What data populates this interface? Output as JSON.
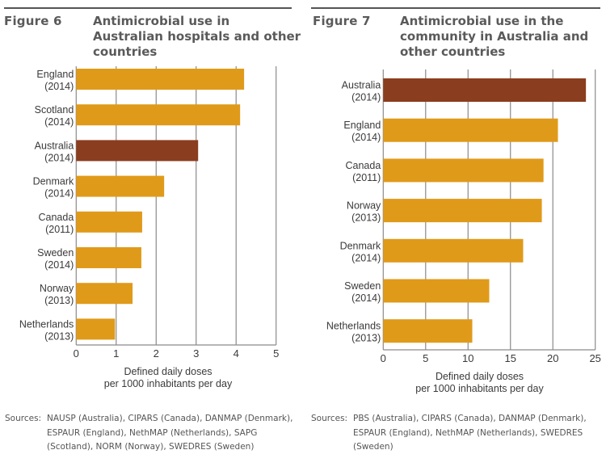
{
  "colors": {
    "highlight": "#8b3d1f",
    "bar": "#e09a1a",
    "grid": "#8a8a8a",
    "rule": "#555555",
    "text": "#5a5a5a"
  },
  "figure6": {
    "number": "Figure 6",
    "title": "Antimicrobial use in Australian hospitals and other countries",
    "sources_label": "Sources:",
    "sources_text": "NAUSP (Australia), CIPARS (Canada), DANMAP (Denmark), ESPAUR (England), NethMAP (Netherlands), SAPG (Scotland), NORM (Norway), SWEDRES (Sweden)"
  },
  "figure7": {
    "number": "Figure 7",
    "title": "Antimicrobial use in the community in Australia and other countries",
    "sources_label": "Sources:",
    "sources_text": "PBS (Australia), CIPARS (Canada), DANMAP (Denmark), ESPAUR (England), NethMAP (Netherlands), SWEDRES (Sweden)"
  },
  "chart_data": [
    {
      "type": "bar",
      "orientation": "horizontal",
      "title": "Antimicrobial use in Australian hospitals and other countries",
      "categories": [
        [
          "England",
          "(2014)"
        ],
        [
          "Scotland",
          "(2014)"
        ],
        [
          "Australia",
          "(2014)"
        ],
        [
          "Denmark",
          "(2014)"
        ],
        [
          "Canada",
          "(2011)"
        ],
        [
          "Sweden",
          "(2014)"
        ],
        [
          "Norway",
          "(2013)"
        ],
        [
          "Netherlands",
          "(2013)"
        ]
      ],
      "values": [
        4.2,
        4.1,
        3.05,
        2.2,
        1.65,
        1.63,
        1.41,
        0.97
      ],
      "highlight": "Australia",
      "xlabel": [
        "Defined daily doses",
        "per 1000 inhabitants per day"
      ],
      "ylabel": "",
      "xlim": [
        0,
        5
      ],
      "xticks": [
        0,
        1,
        2,
        3,
        4,
        5
      ],
      "grid": "vertical"
    },
    {
      "type": "bar",
      "orientation": "horizontal",
      "title": "Antimicrobial use in the community in Australia and other countries",
      "categories": [
        [
          "Australia",
          "(2014)"
        ],
        [
          "England",
          "(2014)"
        ],
        [
          "Canada",
          "(2011)"
        ],
        [
          "Norway",
          "(2013)"
        ],
        [
          "Denmark",
          "(2014)"
        ],
        [
          "Sweden",
          "(2014)"
        ],
        [
          "Netherlands",
          "(2013)"
        ]
      ],
      "values": [
        23.9,
        20.6,
        18.9,
        18.7,
        16.5,
        12.5,
        10.5
      ],
      "highlight": "Australia",
      "xlabel": [
        "Defined daily doses",
        "per 1000 inhabitants per day"
      ],
      "ylabel": "",
      "xlim": [
        0,
        25
      ],
      "xticks": [
        0,
        5,
        10,
        15,
        20,
        25
      ],
      "grid": "vertical"
    }
  ]
}
